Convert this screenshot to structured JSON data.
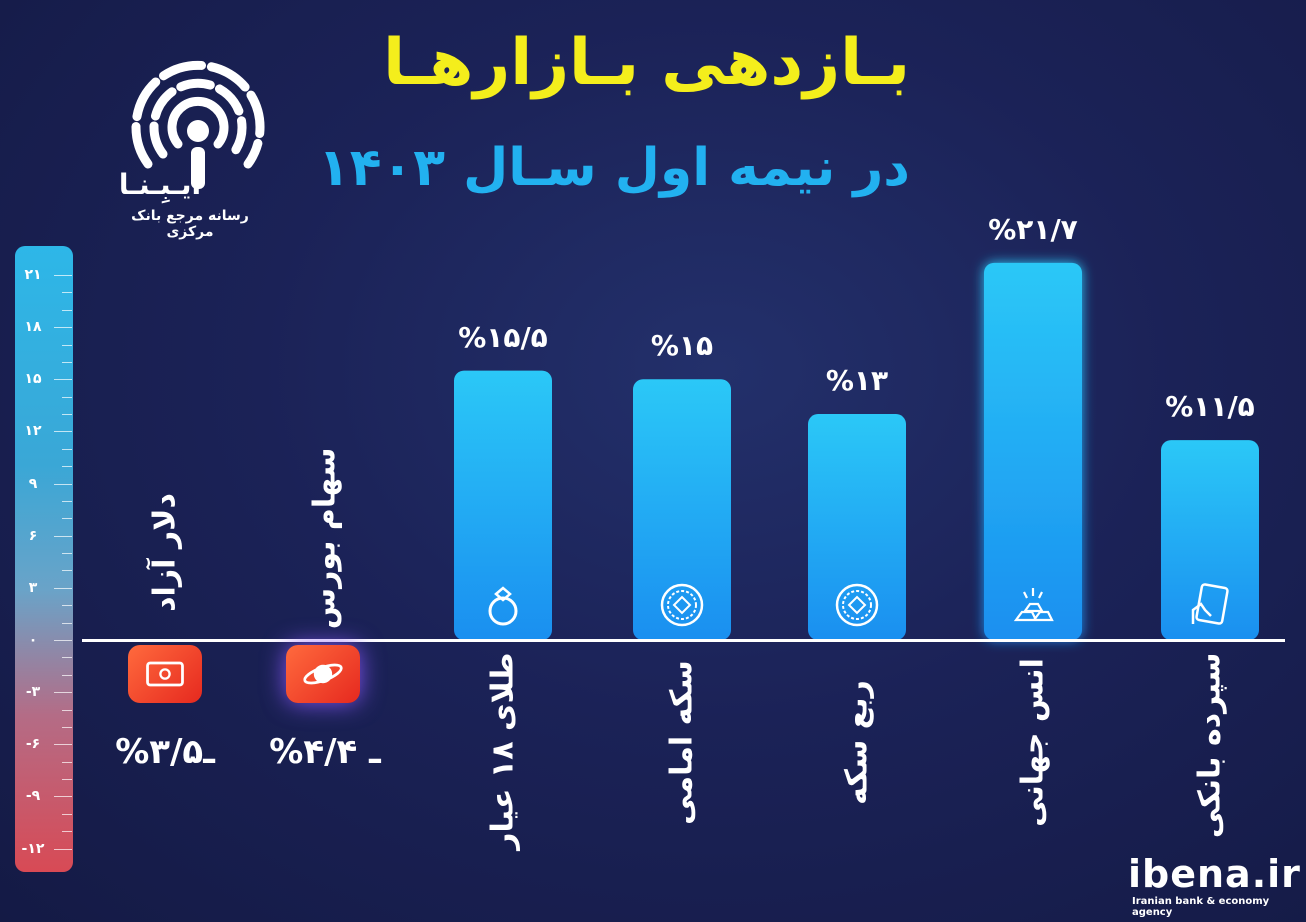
{
  "title": "بـازدهی بـازارهـا",
  "subtitle": "در نیمه اول سـال ۱۴۰۳",
  "logo": {
    "name": "ایـبِـنـا",
    "tagline": "رسانه مرجع بانک مرکزی"
  },
  "brand": {
    "site": "ibena.ir",
    "tagline": "Iranian bank & economy agency"
  },
  "colors": {
    "title": "#f4ee1c",
    "subtitle": "#22b1f0",
    "bar_top": "#2bc8f7",
    "bar_bottom": "#1a8ff0",
    "negative_icon": "#ef3b22"
  },
  "scale_ticks": [
    "۲۱",
    "۱۸",
    "۱۵",
    "۱۲",
    "۹",
    "۶",
    "۳",
    "۰",
    "-۳",
    "-۶",
    "-۹",
    "-۱۲"
  ],
  "chart_data": {
    "type": "bar",
    "title": "بـازدهی بـازارهـا",
    "subtitle": "در نیمه اول سـال ۱۴۰۳",
    "ylim": [
      -12,
      21
    ],
    "ytick_values": [
      21,
      18,
      15,
      12,
      9,
      6,
      3,
      0,
      -3,
      -6,
      -9,
      -12
    ],
    "categories": [
      "دلار آزاد",
      "سهام بورس",
      "طلای ۱۸ عیار",
      "سکه امامی",
      "ربع سکه",
      "انس جهانی",
      "سپرده بانکی"
    ],
    "values": [
      -3.5,
      -4.4,
      15.5,
      15,
      13,
      21.7,
      11.5
    ],
    "value_labels": [
      "%ـ۳/۵",
      "%ـ ۴/۴",
      "%۱۵/۵",
      "%۱۵",
      "%۱۳",
      "%۲۱/۷",
      "%۱۱/۵"
    ],
    "icons": [
      "money-icon",
      "planet-icon",
      "ring-icon",
      "coin-icon",
      "coin-icon",
      "gold-bars-icon",
      "bank-card-icon"
    ]
  }
}
